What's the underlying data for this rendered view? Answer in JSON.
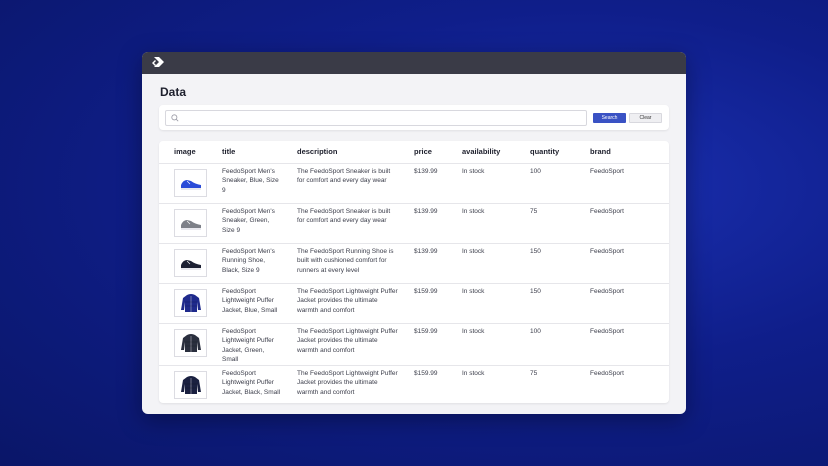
{
  "page_title": "Data",
  "search": {
    "placeholder": "",
    "value": "",
    "search_label": "Search",
    "clear_label": "Clear"
  },
  "table": {
    "columns": [
      "image",
      "title",
      "description",
      "price",
      "availability",
      "quantity",
      "brand"
    ],
    "rows": [
      {
        "product_icon": "blue-sneaker",
        "color": "#2a4bd8",
        "title": "FeedoSport Men's Sneaker, Blue, Size 9",
        "description": "The FeedoSport Sneaker is built for comfort and every day wear",
        "price": "$139.99",
        "availability": "In stock",
        "quantity": "100",
        "brand": "FeedoSport"
      },
      {
        "product_icon": "green-sneaker",
        "color": "#7d8088",
        "title": "FeedoSport Men's Sneaker, Green, Size 9",
        "description": "The FeedoSport Sneaker is built for comfort and every day wear",
        "price": "$139.99",
        "availability": "In stock",
        "quantity": "75",
        "brand": "FeedoSport"
      },
      {
        "product_icon": "black-running-shoe",
        "color": "#1c2033",
        "title": "FeedoSport Men's Running Shoe, Black, Size 9",
        "description": "The FeedoSport Running Shoe is built with cushioned comfort for runners at every level",
        "price": "$139.99",
        "availability": "In stock",
        "quantity": "150",
        "brand": "FeedoSport"
      },
      {
        "product_icon": "blue-puffer-jacket",
        "color": "#1f2a8c",
        "title": "FeedoSport Lightweight Puffer Jacket, Blue, Small",
        "description": "The FeedoSport Lightweight Puffer Jacket provides the ultimate warmth and comfort",
        "price": "$159.99",
        "availability": "In stock",
        "quantity": "150",
        "brand": "FeedoSport"
      },
      {
        "product_icon": "green-puffer-jacket",
        "color": "#2a2f3e",
        "title": "FeedoSport Lightweight Puffer Jacket, Green, Small",
        "description": "The FeedoSport Lightweight Puffer Jacket provides the ultimate warmth and comfort",
        "price": "$159.99",
        "availability": "In stock",
        "quantity": "100",
        "brand": "FeedoSport"
      },
      {
        "product_icon": "black-puffer-jacket",
        "color": "#1a2040",
        "title": "FeedoSport Lightweight Puffer Jacket, Black, Small",
        "description": "The FeedoSport Lightweight Puffer Jacket provides the ultimate warmth and comfort",
        "price": "$159.99",
        "availability": "In stock",
        "quantity": "75",
        "brand": "FeedoSport"
      }
    ]
  },
  "colors": {
    "accent": "#3a52c4",
    "titlebar": "#3a3b47",
    "background": "#0f1e8a"
  }
}
